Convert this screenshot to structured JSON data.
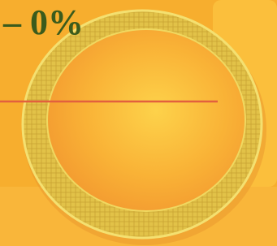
{
  "text": "– 0%"
}
